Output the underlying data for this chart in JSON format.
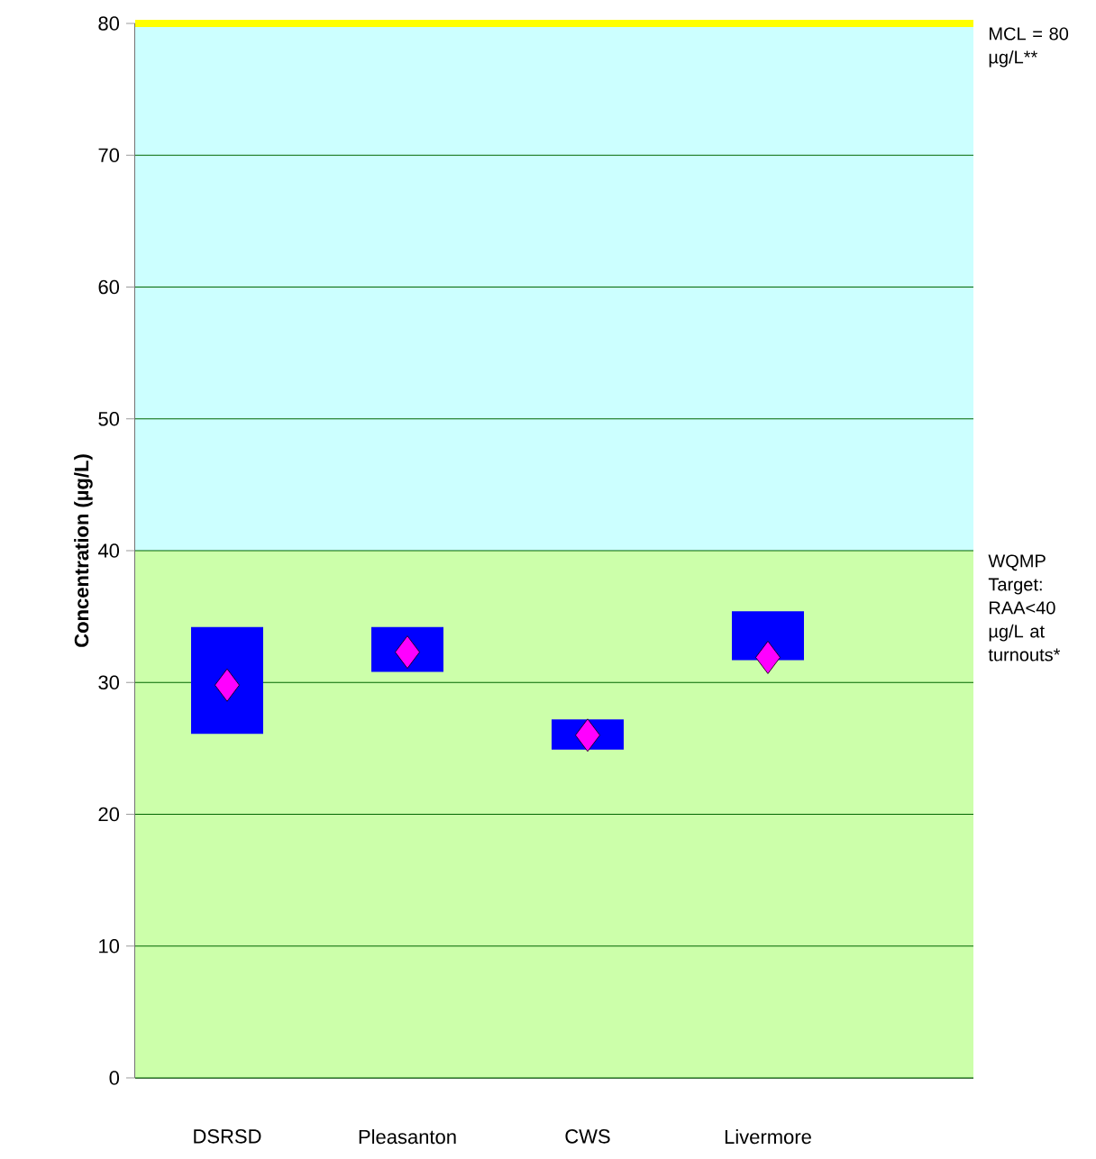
{
  "chart_data": {
    "type": "bar",
    "ylabel": "Concentration (µg/L)",
    "categories": [
      "DSRSD",
      "Pleasanton",
      "CWS",
      "Livermore"
    ],
    "series": [
      {
        "color": "#0000ff",
        "base": [
          26.1,
          30.8,
          24.9,
          31.7
        ],
        "values": [
          8.1,
          3.4,
          2.3,
          3.7
        ]
      },
      {
        "type": "scatter",
        "x": [
          "DSRSD",
          "Pleasanton",
          "CWS",
          "Livermore"
        ],
        "color": "#ff00ff",
        "marker": "diamond",
        "values": [
          29.8,
          32.3,
          26.0,
          31.9
        ]
      }
    ],
    "ylim": [
      0,
      80
    ],
    "yticks": [
      0,
      10,
      20,
      30,
      40,
      50,
      60,
      70,
      80
    ],
    "grid": "y",
    "bands": [
      {
        "axis": "y",
        "from": 0,
        "to": 40,
        "color": "#ccffaa",
        "label": "WQMP Target: RAA<40 µg/L at turnouts*"
      },
      {
        "axis": "y",
        "from": 40,
        "to": 80,
        "color": "#ccffff"
      }
    ],
    "ref_lines": [
      {
        "axis": "y",
        "value": 80,
        "color": "#ffff00",
        "label": "MCL = 80 µg/L**"
      }
    ]
  }
}
